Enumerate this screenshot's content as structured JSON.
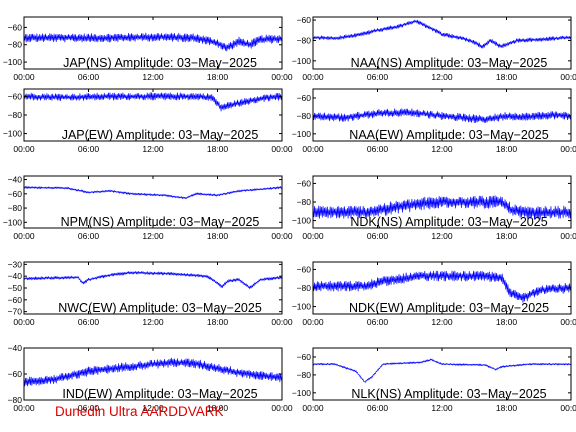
{
  "footer": {
    "text": "Dunedin Ultra AARDDVARK",
    "color": "#dd0000"
  },
  "colors": {
    "trace": "#0000ff",
    "axes": "#000000",
    "background": "#ffffff"
  },
  "chart_data": [
    {
      "type": "line",
      "title": "JAP(NS) Amplitude: 03−May−2025",
      "yticks": [
        -60,
        -80,
        -100
      ],
      "ylim": [
        -108,
        -48
      ],
      "xticks": [
        "00:00",
        "06:00",
        "12:00",
        "18:00",
        "00:00"
      ],
      "xlim": [
        0,
        24
      ],
      "series": [
        {
          "points": [
            [
              0,
              -72
            ],
            [
              4,
              -72
            ],
            [
              8,
              -72
            ],
            [
              12,
              -71
            ],
            [
              16,
              -72
            ],
            [
              18,
              -78
            ],
            [
              18.8,
              -84
            ],
            [
              20,
              -76
            ],
            [
              21,
              -80
            ],
            [
              22,
              -74
            ],
            [
              24,
              -73
            ]
          ],
          "noise": 10
        }
      ]
    },
    {
      "type": "line",
      "title": "NAA(NS) Amplitude: 03−May−2025",
      "yticks": [
        -60,
        -80,
        -100
      ],
      "ylim": [
        -108,
        -57
      ],
      "xticks": [
        "00:00",
        "06:00",
        "12:00",
        "18:00",
        "00:00"
      ],
      "xlim": [
        0,
        24
      ],
      "series": [
        {
          "points": [
            [
              0,
              -77
            ],
            [
              2,
              -78
            ],
            [
              4,
              -75
            ],
            [
              6,
              -70
            ],
            [
              8,
              -66
            ],
            [
              9.5,
              -61
            ],
            [
              11,
              -68
            ],
            [
              12,
              -74
            ],
            [
              14,
              -78
            ],
            [
              15,
              -82
            ],
            [
              15.8,
              -86
            ],
            [
              16.5,
              -80
            ],
            [
              17.5,
              -86
            ],
            [
              19,
              -80
            ],
            [
              21,
              -79
            ],
            [
              24,
              -77
            ]
          ],
          "noise": 4
        }
      ]
    },
    {
      "type": "line",
      "title": "JAP(EW) Amplitude: 03−May−2025",
      "yticks": [
        -60,
        -80,
        -100
      ],
      "ylim": [
        -108,
        -52
      ],
      "xticks": [
        "00:00",
        "06:00",
        "12:00",
        "18:00",
        "00:00"
      ],
      "xlim": [
        0,
        24
      ],
      "series": [
        {
          "points": [
            [
              0,
              -60
            ],
            [
              4,
              -61
            ],
            [
              8,
              -60
            ],
            [
              12,
              -60
            ],
            [
              16,
              -60
            ],
            [
              17.5,
              -61
            ],
            [
              18.3,
              -72
            ],
            [
              19.3,
              -69
            ],
            [
              20.5,
              -66
            ],
            [
              22,
              -62
            ],
            [
              24,
              -60
            ]
          ],
          "noise": 8
        }
      ]
    },
    {
      "type": "line",
      "title": "NAA(EW) Amplitude: 03−May−2025",
      "yticks": [
        -60,
        -80,
        -100
      ],
      "ylim": [
        -108,
        -50
      ],
      "xticks": [
        "00:00",
        "06:00",
        "12:00",
        "18:00",
        "00:00"
      ],
      "xlim": [
        0,
        24
      ],
      "series": [
        {
          "points": [
            [
              0,
              -80
            ],
            [
              3,
              -82
            ],
            [
              6,
              -77
            ],
            [
              9,
              -76
            ],
            [
              12,
              -80
            ],
            [
              14,
              -82
            ],
            [
              16,
              -84
            ],
            [
              18,
              -80
            ],
            [
              20,
              -81
            ],
            [
              22,
              -79
            ],
            [
              24,
              -80
            ]
          ],
          "noise": 9
        }
      ]
    },
    {
      "type": "line",
      "title": "NPM(NS) Amplitude: 03−May−2025",
      "yticks": [
        -40,
        -60,
        -80,
        -100
      ],
      "ylim": [
        -108,
        -35
      ],
      "xticks": [
        "00:00",
        "06:00",
        "12:00",
        "18:00",
        "00:00"
      ],
      "xlim": [
        0,
        24
      ],
      "series": [
        {
          "points": [
            [
              0,
              -51
            ],
            [
              4,
              -52
            ],
            [
              6,
              -58
            ],
            [
              8,
              -56
            ],
            [
              10,
              -60
            ],
            [
              13,
              -62
            ],
            [
              15,
              -66
            ],
            [
              16,
              -60
            ],
            [
              18,
              -62
            ],
            [
              20,
              -56
            ],
            [
              24,
              -51
            ]
          ],
          "noise": 3
        }
      ]
    },
    {
      "type": "line",
      "title": "NDK(NS) Amplitude: 03−May−2025",
      "yticks": [
        -60,
        -80,
        -100
      ],
      "ylim": [
        -108,
        -52
      ],
      "xticks": [
        "00:00",
        "06:00",
        "12:00",
        "18:00",
        "00:00"
      ],
      "xlim": [
        0,
        24
      ],
      "series": [
        {
          "points": [
            [
              0,
              -91
            ],
            [
              5,
              -91
            ],
            [
              7,
              -87
            ],
            [
              10,
              -82
            ],
            [
              12,
              -80
            ],
            [
              15,
              -80
            ],
            [
              17.5,
              -80
            ],
            [
              18.5,
              -89
            ],
            [
              20,
              -92
            ],
            [
              24,
              -91
            ]
          ],
          "noise": 14
        }
      ]
    },
    {
      "type": "line",
      "title": "NWC(EW) Amplitude: 03−May−2025",
      "yticks": [
        -30,
        -40,
        -50,
        -60,
        -70
      ],
      "ylim": [
        -72,
        -28
      ],
      "xticks": [
        "00:00",
        "06:00",
        "12:00",
        "18:00",
        "00:00"
      ],
      "xlim": [
        0,
        24
      ],
      "series": [
        {
          "points": [
            [
              0,
              -42
            ],
            [
              5,
              -41
            ],
            [
              5.5,
              -46
            ],
            [
              6,
              -43
            ],
            [
              8,
              -39
            ],
            [
              10,
              -37
            ],
            [
              14,
              -38
            ],
            [
              17,
              -40
            ],
            [
              18,
              -46
            ],
            [
              18.4,
              -49
            ],
            [
              19,
              -44
            ],
            [
              20,
              -43
            ],
            [
              21,
              -50
            ],
            [
              22,
              -43
            ],
            [
              24,
              -41
            ]
          ],
          "noise": 2.5
        }
      ]
    },
    {
      "type": "line",
      "title": "NDK(EW) Amplitude: 03−May−2025",
      "yticks": [
        -60,
        -80,
        -100
      ],
      "ylim": [
        -108,
        -52
      ],
      "xticks": [
        "00:00",
        "06:00",
        "12:00",
        "18:00",
        "00:00"
      ],
      "xlim": [
        0,
        24
      ],
      "series": [
        {
          "points": [
            [
              0,
              -78
            ],
            [
              5,
              -78
            ],
            [
              6,
              -74
            ],
            [
              8,
              -70
            ],
            [
              10,
              -67
            ],
            [
              14,
              -67
            ],
            [
              17.5,
              -68
            ],
            [
              18.3,
              -85
            ],
            [
              19.5,
              -91
            ],
            [
              21,
              -82
            ],
            [
              24,
              -80
            ]
          ],
          "noise": 11
        }
      ]
    },
    {
      "type": "line",
      "title": "IND(EW) Amplitude: 03−May−2025",
      "yticks": [
        -40,
        -60,
        -80
      ],
      "ylim": [
        -80,
        -40
      ],
      "xticks": [
        "00:00",
        "06:00",
        "12:00",
        "18:00",
        "00:00"
      ],
      "xlim": [
        0,
        24
      ],
      "series": [
        {
          "points": [
            [
              0,
              -66
            ],
            [
              3,
              -64
            ],
            [
              6,
              -58
            ],
            [
              10,
              -54
            ],
            [
              14,
              -51
            ],
            [
              16,
              -52
            ],
            [
              20,
              -59
            ],
            [
              24,
              -63
            ]
          ],
          "noise": 7
        }
      ]
    },
    {
      "type": "line",
      "title": "NLK(NS) Amplitude: 03−May−2025",
      "yticks": [
        -60,
        -80,
        -100
      ],
      "ylim": [
        -108,
        -50
      ],
      "xticks": [
        "00:00",
        "06:00",
        "12:00",
        "18:00",
        "00:00"
      ],
      "xlim": [
        0,
        24
      ],
      "series": [
        {
          "points": [
            [
              0,
              -68
            ],
            [
              2,
              -68
            ],
            [
              3,
              -72
            ],
            [
              4,
              -76
            ],
            [
              4.8,
              -88
            ],
            [
              5.5,
              -82
            ],
            [
              6.5,
              -68
            ],
            [
              10,
              -66
            ],
            [
              11,
              -63
            ],
            [
              12,
              -68
            ],
            [
              16,
              -69
            ],
            [
              17,
              -74
            ],
            [
              17.5,
              -71
            ],
            [
              20,
              -68
            ],
            [
              24,
              -68
            ]
          ],
          "noise": 2
        }
      ]
    }
  ]
}
